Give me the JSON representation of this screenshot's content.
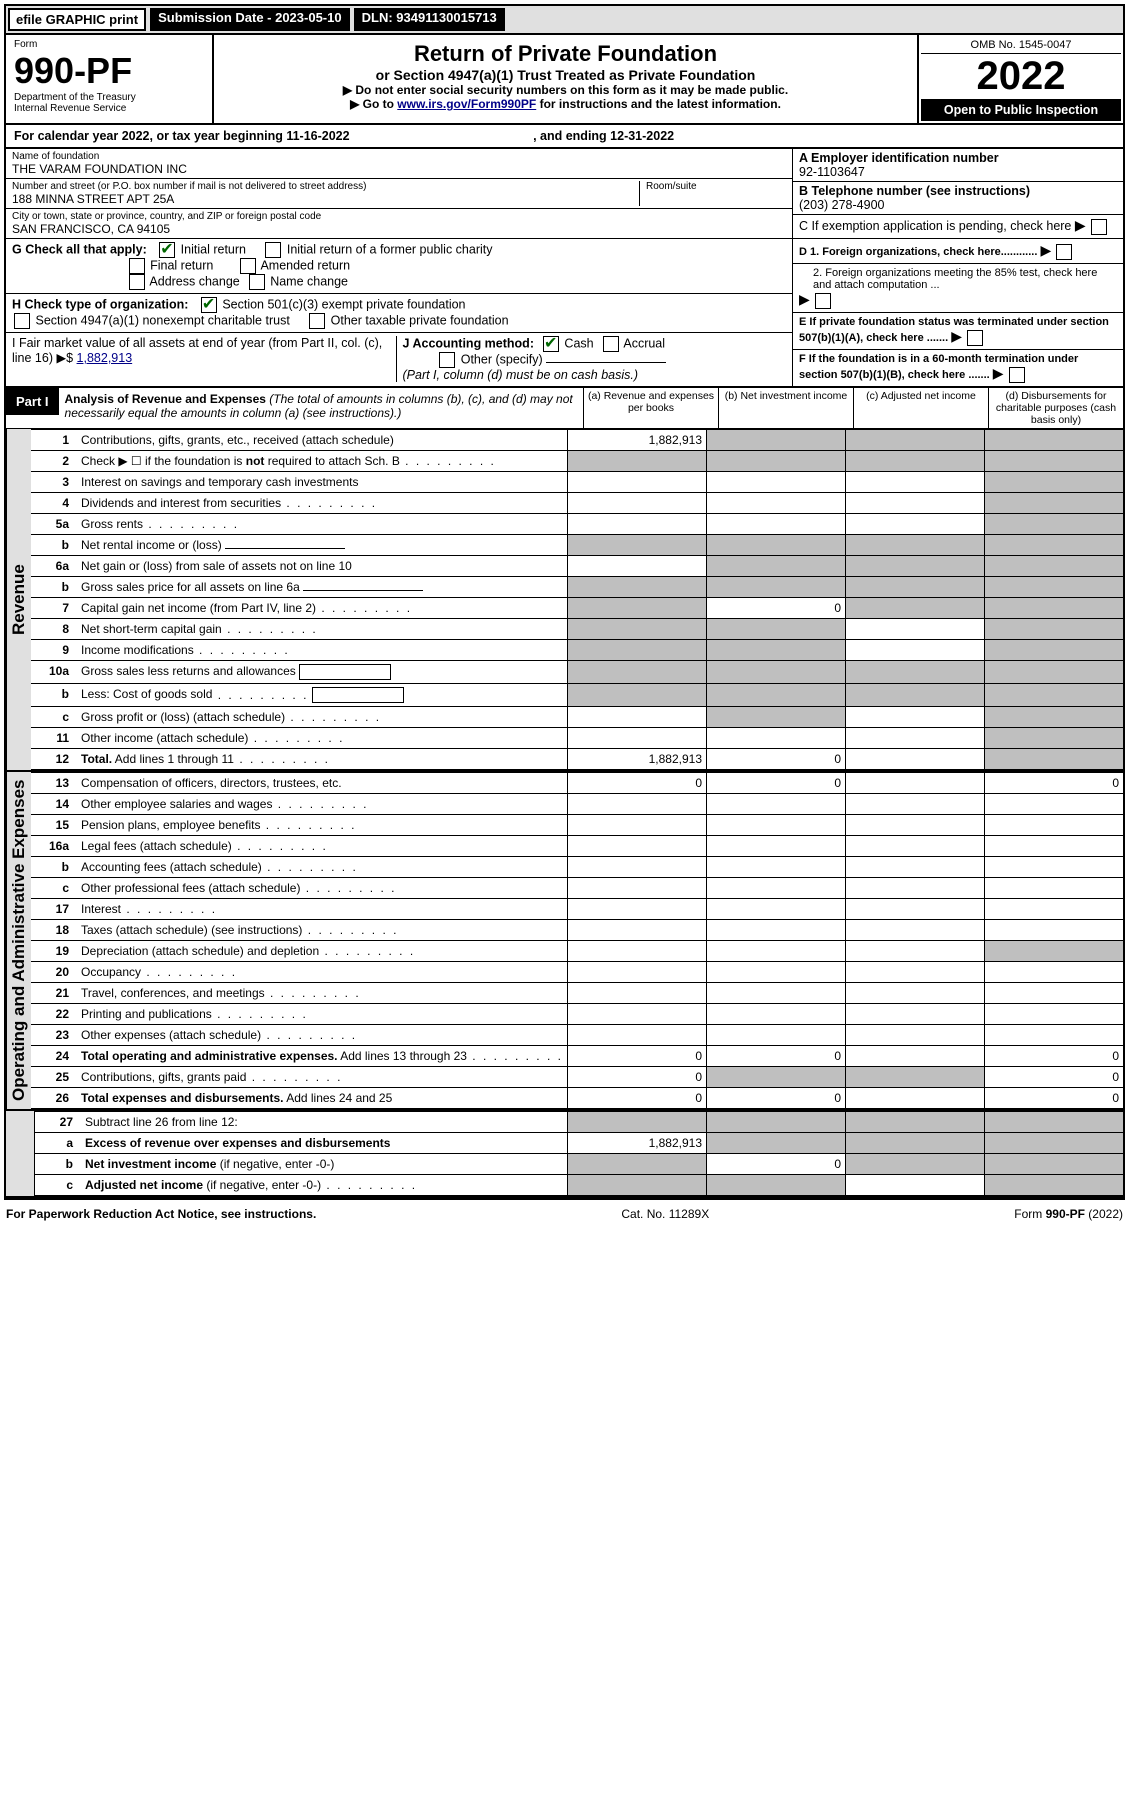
{
  "header": {
    "efile": "efile GRAPHIC print",
    "submission": "Submission Date - 2023-05-10",
    "dln": "DLN: 93491130015713"
  },
  "form": {
    "label": "Form",
    "number": "990-PF",
    "dept": "Department of the Treasury",
    "irs": "Internal Revenue Service"
  },
  "title": {
    "main": "Return of Private Foundation",
    "sub": "or Section 4947(a)(1) Trust Treated as Private Foundation",
    "note1": "▶ Do not enter social security numbers on this form as it may be made public.",
    "note2_pre": "▶ Go to ",
    "note2_link": "www.irs.gov/Form990PF",
    "note2_post": " for instructions and the latest information."
  },
  "yearbox": {
    "omb": "OMB No. 1545-0047",
    "year": "2022",
    "open": "Open to Public Inspection"
  },
  "calyear": {
    "text": "For calendar year 2022, or tax year beginning 11-16-2022",
    "mid": ", and ending 12-31-2022"
  },
  "entity": {
    "name_lbl": "Name of foundation",
    "name": "THE VARAM FOUNDATION INC",
    "addr_lbl": "Number and street (or P.O. box number if mail is not delivered to street address)",
    "addr": "188 MINNA STREET APT 25A",
    "room_lbl": "Room/suite",
    "city_lbl": "City or town, state or province, country, and ZIP or foreign postal code",
    "city": "SAN FRANCISCO, CA  94105"
  },
  "side": {
    "ein_lbl": "A Employer identification number",
    "ein": "92-1103647",
    "tel_lbl": "B Telephone number (see instructions)",
    "tel": "(203) 278-4900",
    "c": "C If exemption application is pending, check here",
    "d1": "D 1. Foreign organizations, check here............",
    "d2": "2. Foreign organizations meeting the 85% test, check here and attach computation ...",
    "e": "E If private foundation status was terminated under section 507(b)(1)(A), check here .......",
    "f": "F If the foundation is in a 60-month termination under section 507(b)(1)(B), check here ......."
  },
  "g": {
    "label": "G Check all that apply:",
    "initial": "Initial return",
    "initial_former": "Initial return of a former public charity",
    "final": "Final return",
    "amended": "Amended return",
    "addr_chg": "Address change",
    "name_chg": "Name change"
  },
  "h": {
    "label": "H Check type of organization:",
    "s501": "Section 501(c)(3) exempt private foundation",
    "s4947": "Section 4947(a)(1) nonexempt charitable trust",
    "other_tax": "Other taxable private foundation"
  },
  "i": {
    "label": "I Fair market value of all assets at end of year (from Part II, col. (c), line 16)",
    "arrow": "▶$",
    "value": "1,882,913"
  },
  "j": {
    "label": "J Accounting method:",
    "cash": "Cash",
    "accrual": "Accrual",
    "other": "Other (specify)",
    "note": "(Part I, column (d) must be on cash basis.)"
  },
  "part1": {
    "label": "Part I",
    "title": "Analysis of Revenue and Expenses",
    "note": "(The total of amounts in columns (b), (c), and (d) may not necessarily equal the amounts in column (a) (see instructions).)",
    "cols": {
      "a": "(a) Revenue and expenses per books",
      "b": "(b) Net investment income",
      "c": "(c) Adjusted net income",
      "d": "(d) Disbursements for charitable purposes (cash basis only)"
    }
  },
  "sections": {
    "revenue": "Revenue",
    "opex": "Operating and Administrative Expenses"
  },
  "rows": [
    {
      "n": "1",
      "t": "Contributions, gifts, grants, etc., received (attach schedule)",
      "a": "1,882,913",
      "b": "g",
      "c": "g",
      "d": "g"
    },
    {
      "n": "2",
      "t": "Check ▶ ☐ if the foundation is <b>not</b> required to attach Sch. B",
      "dots": 1,
      "a": "g",
      "b": "g",
      "c": "g",
      "d": "g"
    },
    {
      "n": "3",
      "t": "Interest on savings and temporary cash investments",
      "a": "",
      "b": "",
      "c": "",
      "d": "g"
    },
    {
      "n": "4",
      "t": "Dividends and interest from securities",
      "dots": 1,
      "a": "",
      "b": "",
      "c": "",
      "d": "g"
    },
    {
      "n": "5a",
      "t": "Gross rents",
      "dots": 1,
      "a": "",
      "b": "",
      "c": "",
      "d": "g"
    },
    {
      "n": "b",
      "t": "Net rental income or (loss)",
      "line": 1,
      "a": "g",
      "b": "g",
      "c": "g",
      "d": "g"
    },
    {
      "n": "6a",
      "t": "Net gain or (loss) from sale of assets not on line 10",
      "a": "",
      "b": "g",
      "c": "g",
      "d": "g"
    },
    {
      "n": "b",
      "t": "Gross sales price for all assets on line 6a",
      "line": 1,
      "a": "g",
      "b": "g",
      "c": "g",
      "d": "g"
    },
    {
      "n": "7",
      "t": "Capital gain net income (from Part IV, line 2)",
      "dots": 1,
      "a": "g",
      "b": "0",
      "c": "g",
      "d": "g"
    },
    {
      "n": "8",
      "t": "Net short-term capital gain",
      "dots": 1,
      "a": "g",
      "b": "g",
      "c": "",
      "d": "g"
    },
    {
      "n": "9",
      "t": "Income modifications",
      "dots": 1,
      "a": "g",
      "b": "g",
      "c": "",
      "d": "g"
    },
    {
      "n": "10a",
      "t": "Gross sales less returns and allowances",
      "box": 1,
      "a": "g",
      "b": "g",
      "c": "g",
      "d": "g"
    },
    {
      "n": "b",
      "t": "Less: Cost of goods sold",
      "dots": 1,
      "box": 1,
      "a": "g",
      "b": "g",
      "c": "g",
      "d": "g"
    },
    {
      "n": "c",
      "t": "Gross profit or (loss) (attach schedule)",
      "dots": 1,
      "a": "",
      "b": "g",
      "c": "",
      "d": "g"
    },
    {
      "n": "11",
      "t": "Other income (attach schedule)",
      "dots": 1,
      "a": "",
      "b": "",
      "c": "",
      "d": "g"
    },
    {
      "n": "12",
      "t": "<b>Total.</b> Add lines 1 through 11",
      "dots": 1,
      "a": "1,882,913",
      "b": "0",
      "c": "",
      "d": "g"
    }
  ],
  "exp_rows": [
    {
      "n": "13",
      "t": "Compensation of officers, directors, trustees, etc.",
      "a": "0",
      "b": "0",
      "c": "",
      "d": "0"
    },
    {
      "n": "14",
      "t": "Other employee salaries and wages",
      "dots": 1,
      "a": "",
      "b": "",
      "c": "",
      "d": ""
    },
    {
      "n": "15",
      "t": "Pension plans, employee benefits",
      "dots": 1,
      "a": "",
      "b": "",
      "c": "",
      "d": ""
    },
    {
      "n": "16a",
      "t": "Legal fees (attach schedule)",
      "dots": 1,
      "a": "",
      "b": "",
      "c": "",
      "d": ""
    },
    {
      "n": "b",
      "t": "Accounting fees (attach schedule)",
      "dots": 1,
      "a": "",
      "b": "",
      "c": "",
      "d": ""
    },
    {
      "n": "c",
      "t": "Other professional fees (attach schedule)",
      "dots": 1,
      "a": "",
      "b": "",
      "c": "",
      "d": ""
    },
    {
      "n": "17",
      "t": "Interest",
      "dots": 1,
      "a": "",
      "b": "",
      "c": "",
      "d": ""
    },
    {
      "n": "18",
      "t": "Taxes (attach schedule) (see instructions)",
      "dots": 1,
      "a": "",
      "b": "",
      "c": "",
      "d": ""
    },
    {
      "n": "19",
      "t": "Depreciation (attach schedule) and depletion",
      "dots": 1,
      "a": "",
      "b": "",
      "c": "",
      "d": "g"
    },
    {
      "n": "20",
      "t": "Occupancy",
      "dots": 1,
      "a": "",
      "b": "",
      "c": "",
      "d": ""
    },
    {
      "n": "21",
      "t": "Travel, conferences, and meetings",
      "dots": 1,
      "a": "",
      "b": "",
      "c": "",
      "d": ""
    },
    {
      "n": "22",
      "t": "Printing and publications",
      "dots": 1,
      "a": "",
      "b": "",
      "c": "",
      "d": ""
    },
    {
      "n": "23",
      "t": "Other expenses (attach schedule)",
      "dots": 1,
      "a": "",
      "b": "",
      "c": "",
      "d": ""
    },
    {
      "n": "24",
      "t": "<b>Total operating and administrative expenses.</b> Add lines 13 through 23",
      "dots": 1,
      "a": "0",
      "b": "0",
      "c": "",
      "d": "0"
    },
    {
      "n": "25",
      "t": "Contributions, gifts, grants paid",
      "dots": 1,
      "a": "0",
      "b": "g",
      "c": "g",
      "d": "0"
    },
    {
      "n": "26",
      "t": "<b>Total expenses and disbursements.</b> Add lines 24 and 25",
      "a": "0",
      "b": "0",
      "c": "",
      "d": "0"
    }
  ],
  "final_rows": [
    {
      "n": "27",
      "t": "Subtract line 26 from line 12:",
      "a": "g",
      "b": "g",
      "c": "g",
      "d": "g"
    },
    {
      "n": "a",
      "t": "<b>Excess of revenue over expenses and disbursements</b>",
      "a": "1,882,913",
      "b": "g",
      "c": "g",
      "d": "g"
    },
    {
      "n": "b",
      "t": "<b>Net investment income</b> (if negative, enter -0-)",
      "a": "g",
      "b": "0",
      "c": "g",
      "d": "g"
    },
    {
      "n": "c",
      "t": "<b>Adjusted net income</b> (if negative, enter -0-)",
      "dots": 1,
      "a": "g",
      "b": "g",
      "c": "",
      "d": "g"
    }
  ],
  "footer": {
    "left": "For Paperwork Reduction Act Notice, see instructions.",
    "mid": "Cat. No. 11289X",
    "right": "Form 990-PF (2022)"
  }
}
